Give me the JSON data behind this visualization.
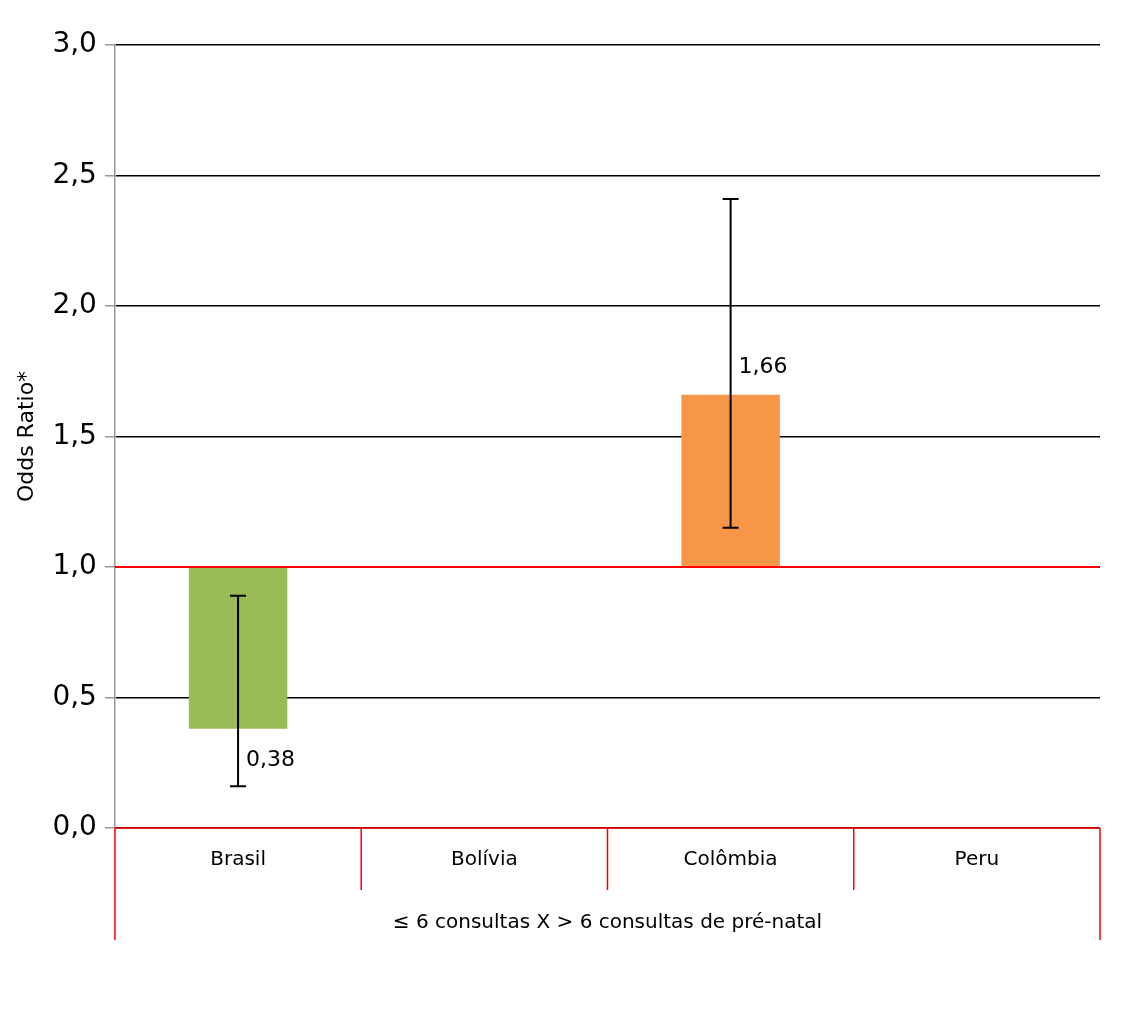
{
  "chart_data": {
    "type": "bar",
    "ylabel": "Odds Ratio*",
    "xlabel": "≤ 6 consultas X > 6 consultas de pré-natal",
    "categories": [
      "Brasil",
      "Bolívia",
      "Colômbia",
      "Peru"
    ],
    "base": [
      1,
      null,
      1,
      null
    ],
    "values": [
      -0.62,
      null,
      0.66,
      null
    ],
    "colors": [
      "#9bbb59",
      "#9bbb59",
      "#f79646",
      "#f79646"
    ],
    "errors": [
      [
        0.16,
        0.89
      ],
      null,
      [
        1.15,
        2.41
      ],
      null
    ],
    "value_labels": [
      "0,38",
      null,
      "1,66",
      null
    ],
    "ylim": [
      0,
      3
    ],
    "yticks": [
      {
        "value": 0,
        "label": "0,0"
      },
      {
        "value": 0.5,
        "label": "0,5"
      },
      {
        "value": 1,
        "label": "1,0"
      },
      {
        "value": 1.5,
        "label": "1,5"
      },
      {
        "value": 2,
        "label": "2,0"
      },
      {
        "value": 2.5,
        "label": "2,5"
      },
      {
        "value": 3,
        "label": "3,0"
      }
    ],
    "grid": "y",
    "ref_lines": [
      {
        "axis": "y",
        "value": 1,
        "color": "#ff0000"
      }
    ]
  }
}
